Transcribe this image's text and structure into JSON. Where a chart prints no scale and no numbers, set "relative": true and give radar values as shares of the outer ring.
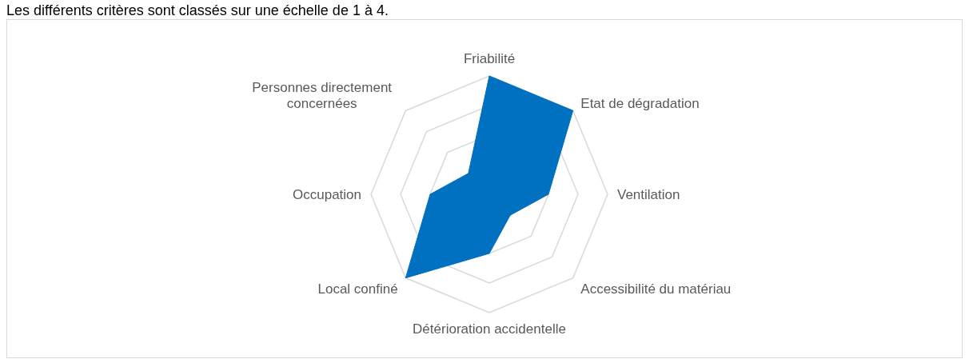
{
  "chart_data": {
    "type": "radar",
    "annotations": [
      "Les différents critères sont classés sur une échelle de 1 à 4."
    ],
    "categories": [
      "Friabilité",
      "Etat de dégradation",
      "Ventilation",
      "Accessibilité du matériau",
      "Détérioration accidentelle",
      "Local confiné",
      "Occupation",
      "Personnes directement concernées"
    ],
    "relative": true,
    "grid": true,
    "legend": false,
    "series": [
      {
        "color": "#0070c0",
        "values": [
          1,
          1,
          0.5,
          0.25,
          0.5,
          1,
          0.5,
          0.25
        ]
      }
    ]
  }
}
